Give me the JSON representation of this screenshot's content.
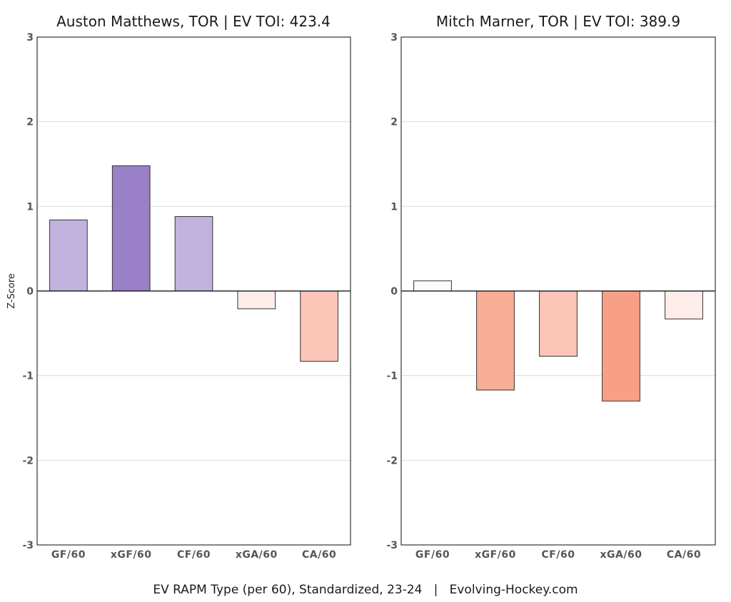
{
  "caption": "EV RAPM Type (per 60), Standardized, 23-24   |   Evolving-Hockey.com",
  "ylabel": "Z-Score",
  "colors": {
    "positive_light": "#c1b3de",
    "positive_dark": "#9a80c6",
    "neutral": "#fbfbfb",
    "negative_very_light": "#fdecea",
    "negative_light": "#fcc5b7",
    "negative_medium": "#faad96",
    "negative_dark": "#f8a086",
    "frame": "#333333"
  },
  "chart_data": [
    {
      "type": "bar",
      "title": "Auston Matthews, TOR  |  EV TOI: 423.4",
      "categories": [
        "GF/60",
        "xGF/60",
        "CF/60",
        "xGA/60",
        "CA/60"
      ],
      "values": [
        0.84,
        1.48,
        0.88,
        -0.21,
        -0.83
      ],
      "bar_colors": [
        "#c1b3de",
        "#9a80c6",
        "#c1b3de",
        "#fdecea",
        "#fcc5b7"
      ],
      "ylabel": "Z-Score",
      "ylim": [
        -3,
        3
      ],
      "yticks": [
        "3",
        "2",
        "1",
        "0",
        "-1",
        "-2",
        "-3"
      ],
      "grid": true
    },
    {
      "type": "bar",
      "title": "Mitch Marner, TOR  |  EV TOI: 389.9",
      "categories": [
        "GF/60",
        "xGF/60",
        "CF/60",
        "xGA/60",
        "CA/60"
      ],
      "values": [
        0.12,
        -1.17,
        -0.77,
        -1.3,
        -0.33
      ],
      "bar_colors": [
        "#fbfbfb",
        "#faad96",
        "#fcc5b7",
        "#f8a086",
        "#fdecea"
      ],
      "ylabel": "",
      "ylim": [
        -3,
        3
      ],
      "yticks": [
        "3",
        "2",
        "1",
        "0",
        "-1",
        "-2",
        "-3"
      ],
      "grid": true
    }
  ]
}
